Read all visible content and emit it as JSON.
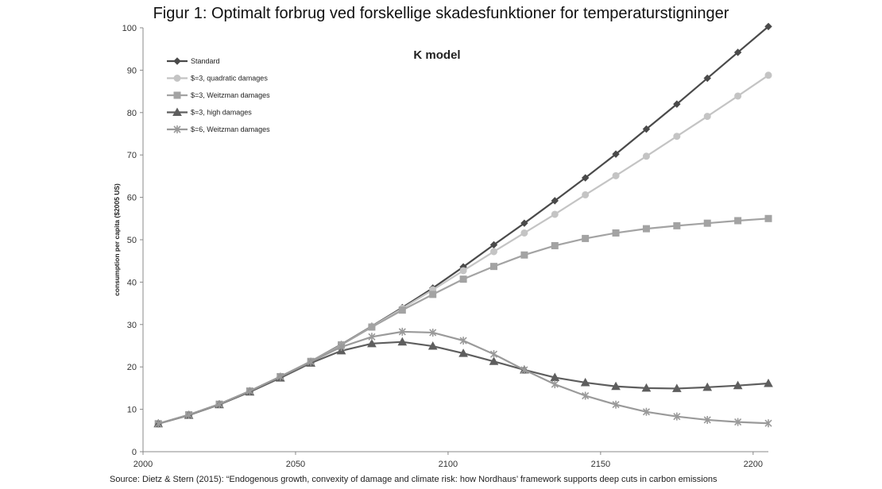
{
  "page": {
    "title": "Figur 1: Optimalt forbrug ved forskellige skadesfunktioner for temperaturstigninger",
    "source": "Source: Dietz & Stern (2015): “Endogenous growth, convexity of damage and climate risk: how Nordhaus’ framework supports deep cuts in carbon emissions"
  },
  "chart_data": {
    "type": "line",
    "title": "K model",
    "xlabel": "",
    "ylabel": "consumption per capita ($2005 US)",
    "xlim": [
      2000,
      2205
    ],
    "ylim": [
      0,
      100
    ],
    "x_ticks": [
      2000,
      2050,
      2100,
      2150,
      2200
    ],
    "y_ticks": [
      0,
      10,
      20,
      30,
      40,
      50,
      60,
      70,
      80,
      90,
      100
    ],
    "legend_position": "top-left",
    "grid": false,
    "x": [
      2005,
      2015,
      2025,
      2035,
      2045,
      2055,
      2065,
      2075,
      2085,
      2095,
      2105,
      2115,
      2125,
      2135,
      2145,
      2155,
      2165,
      2175,
      2185,
      2195,
      2205
    ],
    "series": [
      {
        "name": "Standard",
        "color": "#4a4a4a",
        "marker": "diamond",
        "values": [
          6.6,
          8.7,
          11.2,
          14.3,
          17.7,
          21.3,
          25.3,
          29.6,
          34.0,
          38.6,
          43.6,
          48.8,
          53.9,
          59.2,
          64.6,
          70.2,
          76.1,
          82.0,
          88.1,
          94.2,
          100.3
        ]
      },
      {
        "name": "$=3, quadratic damages",
        "color": "#c4c4c4",
        "marker": "circle",
        "values": [
          6.6,
          8.7,
          11.2,
          14.3,
          17.7,
          21.3,
          25.2,
          29.5,
          33.8,
          38.2,
          42.7,
          47.2,
          51.6,
          56.0,
          60.6,
          65.1,
          69.7,
          74.4,
          79.1,
          83.9,
          88.8
        ]
      },
      {
        "name": "$=3, Weitzman damages",
        "color": "#a3a3a3",
        "marker": "square",
        "values": [
          6.6,
          8.7,
          11.2,
          14.3,
          17.7,
          21.3,
          25.2,
          29.4,
          33.4,
          37.1,
          40.7,
          43.7,
          46.4,
          48.6,
          50.3,
          51.6,
          52.6,
          53.3,
          53.9,
          54.5,
          55.0
        ]
      },
      {
        "name": "$=3, high damages",
        "color": "#5e5e5e",
        "marker": "triangle",
        "values": [
          6.6,
          8.6,
          11.1,
          14.1,
          17.4,
          20.9,
          23.8,
          25.5,
          25.9,
          24.9,
          23.2,
          21.3,
          19.3,
          17.5,
          16.3,
          15.4,
          15.0,
          14.9,
          15.2,
          15.6,
          16.1
        ]
      },
      {
        "name": "$=6, Weitzman damages",
        "color": "#9a9a9a",
        "marker": "star",
        "values": [
          6.6,
          8.7,
          11.2,
          14.3,
          17.7,
          21.2,
          24.7,
          27.1,
          28.3,
          28.1,
          26.2,
          23.0,
          19.3,
          15.9,
          13.2,
          11.1,
          9.4,
          8.3,
          7.5,
          7.0,
          6.7
        ]
      }
    ]
  }
}
